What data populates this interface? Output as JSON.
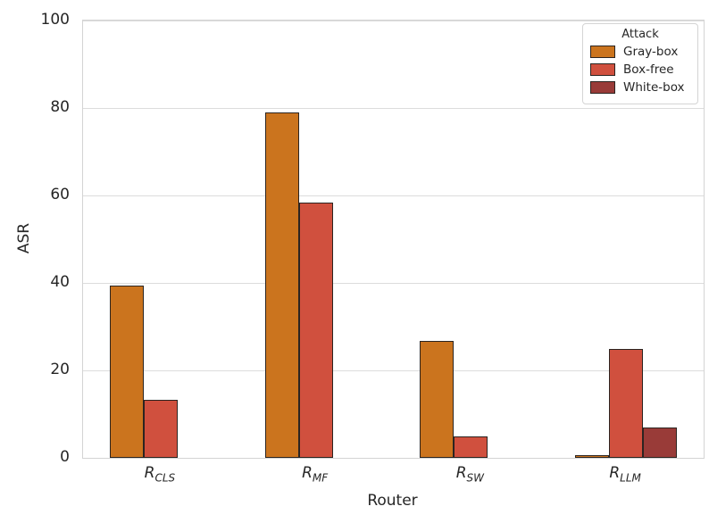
{
  "figure": {
    "ylabel": "ASR",
    "xlabel": "Router"
  },
  "legend": {
    "title": "Attack",
    "position": "upper right",
    "entries": [
      "Gray-box",
      "Box-free",
      "White-box"
    ]
  },
  "colors": {
    "gray_box": "#cb741e",
    "box_free": "#d0503e",
    "white_box": "#993b38",
    "bar_edge": "#2b2420",
    "grid": "#dcdcdc",
    "spine": "#d4d4d4",
    "text": "#262626"
  },
  "chart_data": {
    "type": "bar",
    "title": "",
    "xlabel": "Router",
    "ylabel": "ASR",
    "ylim": [
      0,
      100
    ],
    "yticks": [
      0,
      20,
      40,
      60,
      80,
      100
    ],
    "grid": true,
    "legend_title": "Attack",
    "legend_position": "upper right",
    "categories": [
      "R_CLS",
      "R_MF",
      "R_SW",
      "R_LLM"
    ],
    "category_labels": [
      {
        "base": "R",
        "sub": "CLS"
      },
      {
        "base": "R",
        "sub": "MF"
      },
      {
        "base": "R",
        "sub": "SW"
      },
      {
        "base": "R",
        "sub": "LLM"
      }
    ],
    "series": [
      {
        "name": "Gray-box",
        "color": "#cb741e",
        "values": [
          39.3,
          79.0,
          26.8,
          0.7
        ]
      },
      {
        "name": "Box-free",
        "color": "#d0503e",
        "values": [
          13.3,
          58.3,
          4.8,
          24.8
        ]
      },
      {
        "name": "White-box",
        "color": "#993b38",
        "values": [
          0,
          0,
          0,
          7.0
        ]
      }
    ]
  }
}
